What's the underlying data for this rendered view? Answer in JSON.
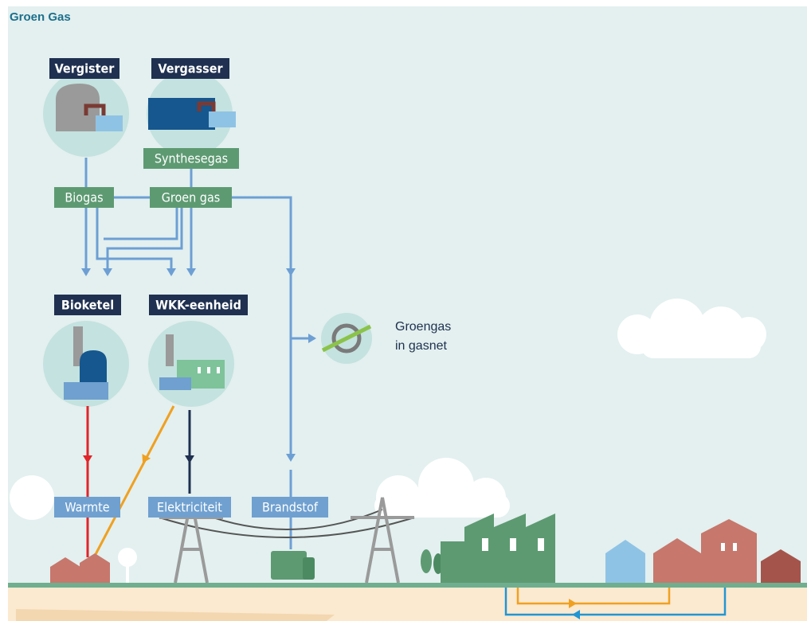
{
  "header": {
    "title": "Groen Gas"
  },
  "nodes": [
    {
      "label": "Vergister"
    },
    {
      "label": "Vergasser"
    },
    {
      "label": "Synthesegas"
    },
    {
      "label": "Biogas"
    },
    {
      "label": "Groen gas"
    },
    {
      "label": "Bioketel"
    },
    {
      "label": "WKK-eenheid"
    },
    {
      "label": "Warmte"
    },
    {
      "label": "Elektriciteit"
    },
    {
      "label": "Brandstof"
    }
  ],
  "gasnet": {
    "lines": [
      "Groengas",
      "in gasnet"
    ]
  }
}
